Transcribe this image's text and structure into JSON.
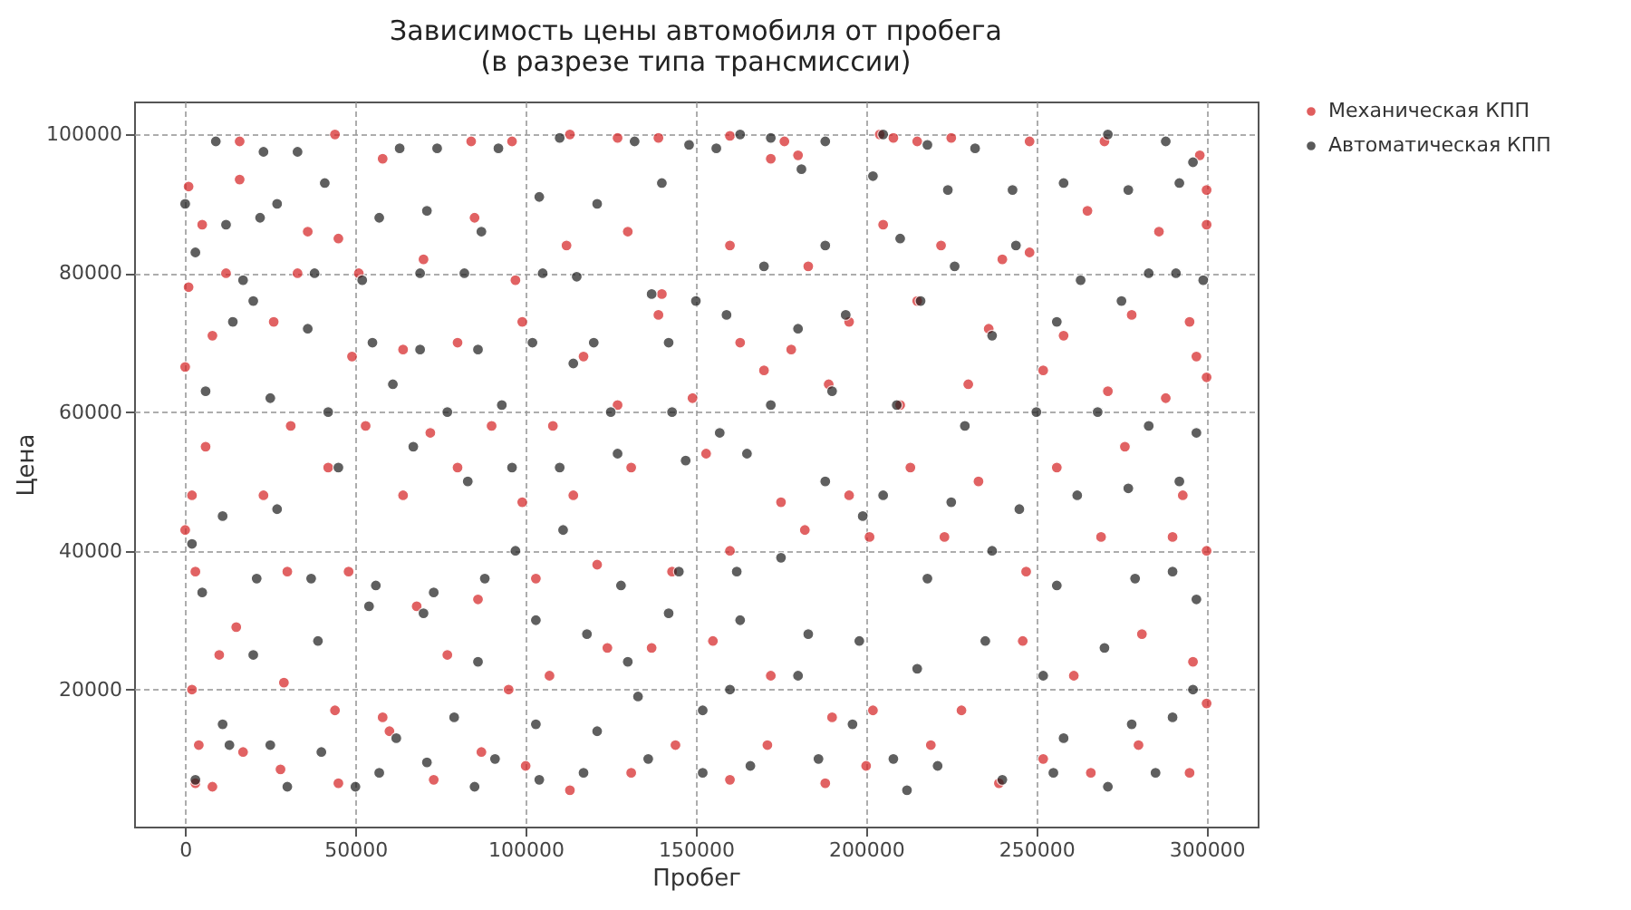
{
  "chart_data": {
    "type": "scatter",
    "title": "Зависимость цены автомобиля от пробега\n(в разрезе типа трансмиссии)",
    "xlabel": "Пробег",
    "ylabel": "Цена",
    "xlim": [
      -15000,
      315000
    ],
    "xticks": [
      0,
      50000,
      100000,
      150000,
      200000,
      250000,
      300000
    ],
    "ylim": [
      250,
      104750
    ],
    "yticks": [
      20000,
      40000,
      60000,
      80000,
      100000
    ],
    "grid": true,
    "legend": "top right",
    "marker": "circle",
    "series": [
      {
        "name": "Механическая КПП",
        "color": "#d62728",
        "x": [
          44000,
          1000,
          0,
          1000,
          0,
          2000,
          3000,
          16000,
          16000,
          36000,
          45000,
          58000,
          84000,
          96000,
          113000,
          127000,
          139000,
          160000,
          172000,
          176000,
          180000,
          204000,
          208000,
          215000,
          225000,
          248000,
          270000,
          298000,
          300000,
          300000,
          286000,
          265000,
          248000,
          240000,
          222000,
          205000,
          183000,
          160000,
          140000,
          130000,
          112000,
          97000,
          85000,
          70000,
          51000,
          33000,
          12000,
          5000,
          8000,
          26000,
          49000,
          64000,
          80000,
          99000,
          117000,
          139000,
          163000,
          178000,
          195000,
          215000,
          236000,
          258000,
          278000,
          295000,
          297000,
          300000,
          288000,
          271000,
          252000,
          230000,
          210000,
          189000,
          170000,
          149000,
          127000,
          108000,
          90000,
          72000,
          53000,
          31000,
          6000,
          2000,
          23000,
          42000,
          64000,
          80000,
          99000,
          114000,
          131000,
          153000,
          175000,
          195000,
          213000,
          233000,
          256000,
          276000,
          293000,
          300000,
          290000,
          269000,
          247000,
          223000,
          201000,
          182000,
          160000,
          143000,
          121000,
          103000,
          86000,
          68000,
          48000,
          30000,
          15000,
          3000,
          10000,
          29000,
          44000,
          58000,
          77000,
          95000,
          107000,
          124000,
          137000,
          155000,
          172000,
          190000,
          202000,
          228000,
          246000,
          261000,
          281000,
          296000,
          300000,
          295000,
          280000,
          266000,
          252000,
          239000,
          219000,
          200000,
          188000,
          171000,
          160000,
          144000,
          131000,
          113000,
          100000,
          87000,
          73000,
          60000,
          45000,
          28000,
          17000,
          4000,
          8000
        ],
        "values": [
          100000,
          92500,
          66500,
          78000,
          43000,
          20000,
          6500,
          99000,
          93500,
          86000,
          85000,
          96500,
          99000,
          99000,
          100000,
          99500,
          99500,
          99800,
          96500,
          99000,
          97000,
          100000,
          99500,
          99000,
          99500,
          99000,
          99000,
          97000,
          92000,
          87000,
          86000,
          89000,
          83000,
          82000,
          84000,
          87000,
          81000,
          84000,
          77000,
          86000,
          84000,
          79000,
          88000,
          82000,
          80000,
          80000,
          80000,
          87000,
          71000,
          73000,
          68000,
          69000,
          70000,
          73000,
          68000,
          74000,
          70000,
          69000,
          73000,
          76000,
          72000,
          71000,
          74000,
          73000,
          68000,
          65000,
          62000,
          63000,
          66000,
          64000,
          61000,
          64000,
          66000,
          62000,
          61000,
          58000,
          58000,
          57000,
          58000,
          58000,
          55000,
          48000,
          48000,
          52000,
          48000,
          52000,
          47000,
          48000,
          52000,
          54000,
          47000,
          48000,
          52000,
          50000,
          52000,
          55000,
          48000,
          40000,
          42000,
          42000,
          37000,
          42000,
          42000,
          43000,
          40000,
          37000,
          38000,
          36000,
          33000,
          32000,
          37000,
          37000,
          29000,
          37000,
          25000,
          21000,
          17000,
          16000,
          25000,
          20000,
          22000,
          26000,
          26000,
          27000,
          22000,
          16000,
          17000,
          17000,
          27000,
          22000,
          28000,
          24000,
          18000,
          8000,
          12000,
          8000,
          10000,
          6500,
          12000,
          9000,
          6500,
          12000,
          7000,
          12000,
          8000,
          5500,
          9000,
          11000,
          7000,
          14000,
          6500,
          8500,
          11000,
          12000,
          6000
        ]
      },
      {
        "name": "Автоматическая КПП",
        "color": "#222222",
        "x": [
          9000,
          23000,
          33000,
          63000,
          74000,
          92000,
          110000,
          132000,
          148000,
          163000,
          172000,
          188000,
          205000,
          218000,
          232000,
          271000,
          288000,
          296000,
          292000,
          277000,
          258000,
          243000,
          224000,
          202000,
          181000,
          156000,
          140000,
          121000,
          104000,
          87000,
          71000,
          57000,
          41000,
          27000,
          12000,
          0,
          3000,
          22000,
          17000,
          38000,
          52000,
          69000,
          82000,
          105000,
          115000,
          137000,
          150000,
          170000,
          188000,
          210000,
          226000,
          244000,
          263000,
          283000,
          299000,
          291000,
          275000,
          256000,
          237000,
          216000,
          194000,
          180000,
          159000,
          142000,
          120000,
          102000,
          86000,
          69000,
          55000,
          36000,
          14000,
          20000,
          6000,
          25000,
          42000,
          61000,
          77000,
          93000,
          114000,
          125000,
          143000,
          157000,
          172000,
          190000,
          209000,
          229000,
          250000,
          268000,
          283000,
          297000,
          292000,
          277000,
          262000,
          245000,
          225000,
          205000,
          188000,
          165000,
          147000,
          127000,
          110000,
          96000,
          83000,
          67000,
          45000,
          27000,
          11000,
          2000,
          5000,
          21000,
          37000,
          56000,
          73000,
          88000,
          97000,
          111000,
          128000,
          145000,
          162000,
          175000,
          199000,
          218000,
          237000,
          256000,
          279000,
          297000,
          290000,
          270000,
          252000,
          235000,
          215000,
          198000,
          183000,
          163000,
          142000,
          130000,
          118000,
          103000,
          86000,
          70000,
          54000,
          39000,
          20000,
          11000,
          25000,
          40000,
          62000,
          79000,
          91000,
          103000,
          121000,
          133000,
          152000,
          160000,
          180000,
          196000,
          208000,
          221000,
          240000,
          258000,
          278000,
          290000,
          296000,
          285000,
          271000,
          255000,
          212000,
          186000,
          166000,
          152000,
          136000,
          117000,
          104000,
          85000,
          71000,
          57000,
          50000,
          30000,
          13000,
          3000
        ],
        "values": [
          99000,
          97500,
          97500,
          98000,
          98000,
          98000,
          99500,
          99000,
          98500,
          100000,
          99500,
          99000,
          100000,
          98500,
          98000,
          100000,
          99000,
          96000,
          93000,
          92000,
          93000,
          92000,
          92000,
          94000,
          95000,
          98000,
          93000,
          90000,
          91000,
          86000,
          89000,
          88000,
          93000,
          90000,
          87000,
          90000,
          83000,
          88000,
          79000,
          80000,
          79000,
          80000,
          80000,
          80000,
          79500,
          77000,
          76000,
          81000,
          84000,
          85000,
          81000,
          84000,
          79000,
          80000,
          79000,
          80000,
          76000,
          73000,
          71000,
          76000,
          74000,
          72000,
          74000,
          70000,
          70000,
          70000,
          69000,
          69000,
          70000,
          72000,
          73000,
          76000,
          63000,
          62000,
          60000,
          64000,
          60000,
          61000,
          67000,
          60000,
          60000,
          57000,
          61000,
          63000,
          61000,
          58000,
          60000,
          60000,
          58000,
          57000,
          50000,
          49000,
          48000,
          46000,
          47000,
          48000,
          50000,
          54000,
          53000,
          54000,
          52000,
          52000,
          50000,
          55000,
          52000,
          46000,
          45000,
          41000,
          34000,
          36000,
          36000,
          35000,
          34000,
          36000,
          40000,
          43000,
          35000,
          37000,
          37000,
          39000,
          45000,
          36000,
          40000,
          35000,
          36000,
          33000,
          37000,
          26000,
          22000,
          27000,
          23000,
          27000,
          28000,
          30000,
          31000,
          24000,
          28000,
          30000,
          24000,
          31000,
          32000,
          27000,
          25000,
          15000,
          12000,
          11000,
          13000,
          16000,
          10000,
          15000,
          14000,
          19000,
          17000,
          20000,
          22000,
          15000,
          10000,
          9000,
          7000,
          13000,
          15000,
          16000,
          20000,
          8000,
          6000,
          8000,
          5500,
          10000,
          9000,
          8000,
          10000,
          8000,
          7000,
          6000,
          9500,
          8000,
          6000,
          6000,
          12000,
          7000
        ]
      }
    ]
  }
}
